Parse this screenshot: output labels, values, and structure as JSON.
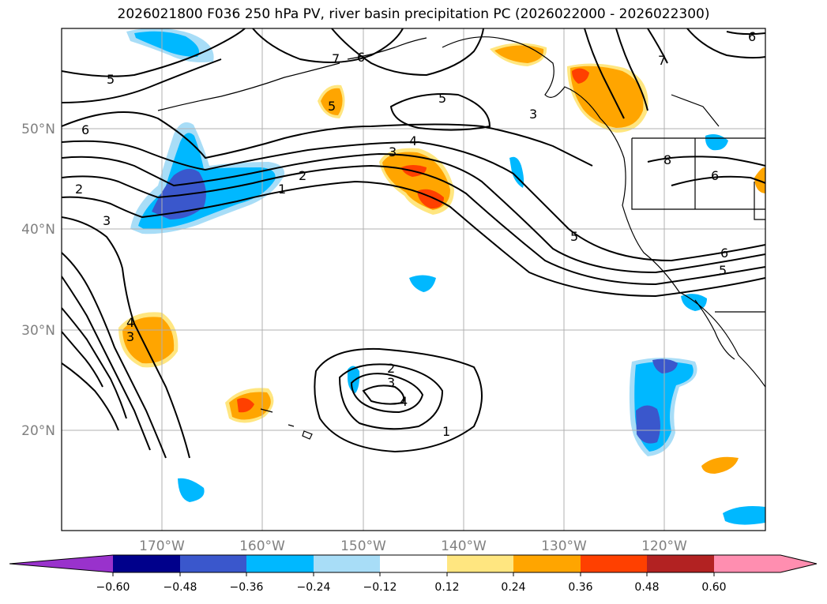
{
  "title": "2026021800 F036 250 hPa PV, river basin precipitation PC (2026022000 - 2026022300)",
  "map": {
    "lat_labels": [
      "50°N",
      "40°N",
      "30°N",
      "20°N"
    ],
    "lon_labels": [
      "170°W",
      "160°W",
      "150°W",
      "140°W",
      "130°W",
      "120°W"
    ],
    "contour_labels": [
      "5",
      "6",
      "7",
      "6",
      "5",
      "3",
      "5",
      "2",
      "1",
      "3",
      "4",
      "3",
      "2",
      "5",
      "6",
      "7",
      "8",
      "6",
      "3",
      "4",
      "5",
      "6",
      "2",
      "3",
      "4",
      "1"
    ],
    "colors": {
      "neg_strong": "#3a57cc",
      "neg_mid": "#00b8ff",
      "neg_light": "#a8ddf7",
      "pos_light": "#ffe680",
      "pos_mid": "#ffa500",
      "pos_strong": "#ff4000"
    }
  },
  "colorbar": {
    "ticks": [
      "−0.60",
      "−0.48",
      "−0.36",
      "−0.24",
      "−0.12",
      "0.12",
      "0.24",
      "0.36",
      "0.48",
      "0.60"
    ],
    "colors": [
      "#9932cc",
      "#00008b",
      "#3a57cc",
      "#00b8ff",
      "#a8ddf7",
      "#ffffff",
      "#ffe680",
      "#ffa500",
      "#ff4000",
      "#b22222",
      "#ff8eb0",
      "#ff8eb0"
    ]
  }
}
